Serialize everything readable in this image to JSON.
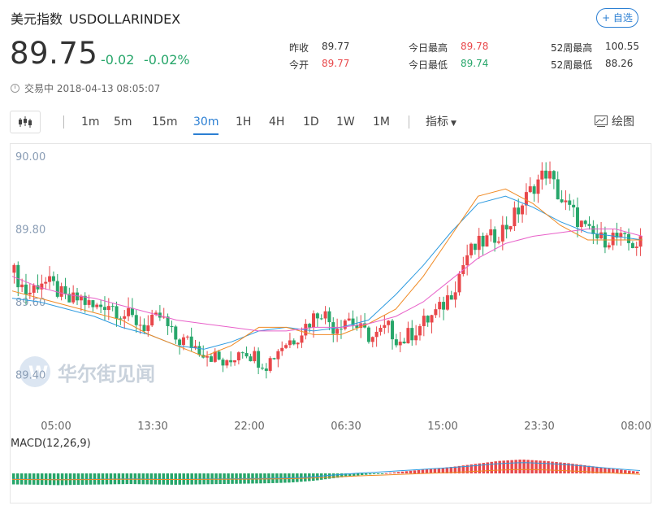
{
  "header": {
    "name": "美元指数",
    "code": "USDOLLARINDEX",
    "follow_label": "+ 自选"
  },
  "quote": {
    "price": "89.75",
    "change": "-0.02",
    "change_pct": "-0.02%",
    "status": "交易中",
    "time": "2018-04-13 08:05:07",
    "colors": {
      "up": "#e8474a",
      "down": "#27a66a"
    }
  },
  "stats": {
    "prev_close_label": "昨收",
    "prev_close": "89.77",
    "open_label": "今开",
    "open": "89.77",
    "high_label": "今日最高",
    "high": "89.78",
    "low_label": "今日最低",
    "low": "89.74",
    "w52_high_label": "52周最高",
    "w52_high": "100.55",
    "w52_low_label": "52周最低",
    "w52_low": "88.26"
  },
  "toolbar": {
    "periods": [
      "1m",
      "5m",
      "15m",
      "30m",
      "1H",
      "4H",
      "1D",
      "1W",
      "1M"
    ],
    "active": "30m",
    "indicator_label": "指标",
    "draw_label": "绘图"
  },
  "watermark": "华尔街见闻",
  "chart_data": [
    {
      "type": "candlestick",
      "y_ticks": [
        "90.00",
        "89.80",
        "89.60",
        "89.40"
      ],
      "ylim": [
        89.33,
        90.02
      ],
      "x_ticks": [
        "05:00",
        "13:30",
        "22:00",
        "06:30",
        "15:00",
        "23:30",
        "08:00"
      ],
      "series": [
        {
          "name": "",
          "color": "#2e9be0",
          "type": "ma",
          "values": [
            89.61,
            89.6,
            89.58,
            89.56,
            89.53,
            89.51,
            89.48,
            89.47,
            89.49,
            89.52,
            89.53,
            89.52,
            89.53,
            89.55,
            89.62,
            89.7,
            89.79,
            89.87,
            89.89,
            89.86,
            89.82,
            89.79,
            89.78,
            89.77
          ]
        },
        {
          "name": "",
          "color": "#f08a24",
          "type": "ma",
          "values": [
            89.63,
            89.61,
            89.59,
            89.57,
            89.55,
            89.51,
            89.48,
            89.45,
            89.48,
            89.53,
            89.53,
            89.51,
            89.51,
            89.54,
            89.58,
            89.67,
            89.78,
            89.89,
            89.91,
            89.87,
            89.81,
            89.77,
            89.77,
            89.77
          ]
        },
        {
          "name": "",
          "color": "#e860c9",
          "type": "ma",
          "values": [
            89.67,
            89.64,
            89.62,
            89.61,
            89.59,
            89.57,
            89.55,
            89.54,
            89.53,
            89.52,
            89.52,
            89.53,
            89.53,
            89.54,
            89.56,
            89.6,
            89.66,
            89.72,
            89.76,
            89.78,
            89.79,
            89.8,
            89.8,
            89.78
          ]
        }
      ],
      "candles_source_points": [
        89.68,
        89.62,
        89.66,
        89.64,
        89.6,
        89.61,
        89.58,
        89.6,
        89.57,
        89.55,
        89.53,
        89.56,
        89.5,
        89.49,
        89.47,
        89.45,
        89.42,
        89.48,
        89.45,
        89.43,
        89.48,
        89.5,
        89.54,
        89.58,
        89.53,
        89.56,
        89.52,
        89.5,
        89.53,
        89.49,
        89.52,
        89.55,
        89.58,
        89.64,
        89.73,
        89.76,
        89.78,
        89.81,
        89.86,
        89.92,
        89.96,
        89.88,
        89.84,
        89.79,
        89.77,
        89.78,
        89.76,
        89.76
      ]
    },
    {
      "type": "bar",
      "title": "MACD(12,26,9)",
      "series": [
        {
          "name": "",
          "color": "#27a66a",
          "type": "histogram-down"
        },
        {
          "name": "",
          "color": "#e8474a",
          "type": "histogram-up"
        },
        {
          "name": "",
          "color": "#2e9be0",
          "type": "dif"
        },
        {
          "name": "",
          "color": "#f08a24",
          "type": "dea"
        }
      ],
      "values": [
        -0.03,
        -0.031,
        -0.032,
        -0.031,
        -0.03,
        -0.029,
        -0.03,
        -0.031,
        -0.03,
        -0.029,
        -0.028,
        -0.027,
        -0.025,
        -0.02,
        -0.012,
        -0.005,
        0.0,
        0.006,
        0.012,
        0.018,
        0.026,
        0.034,
        0.038,
        0.034,
        0.028,
        0.02,
        0.012,
        0.005
      ]
    }
  ]
}
